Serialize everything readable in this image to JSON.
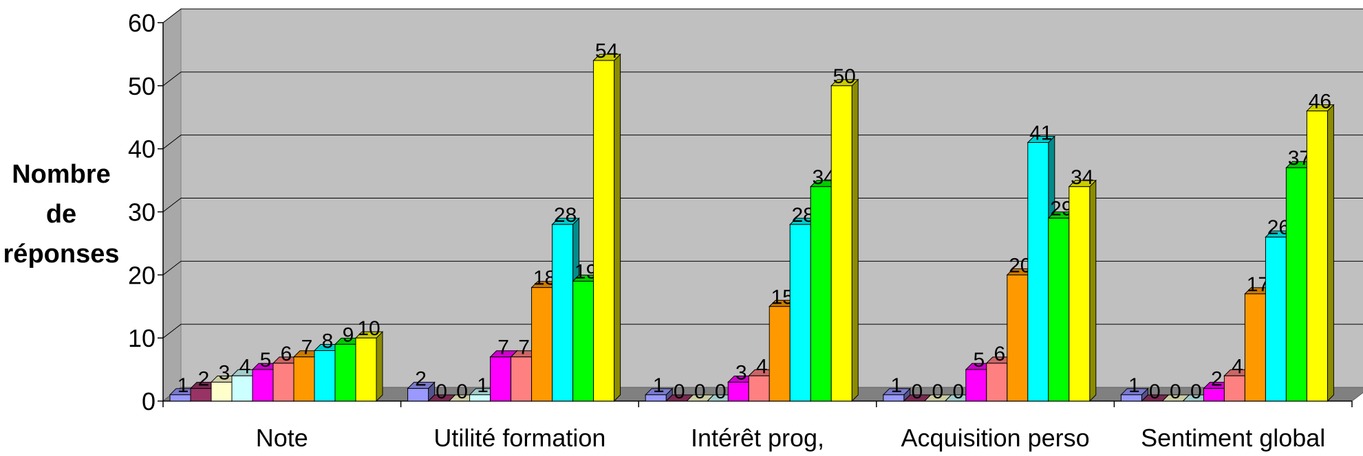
{
  "chart_data": {
    "type": "bar",
    "ylabel_lines": [
      "Nombre",
      "de",
      "réponses"
    ],
    "xlabel": "",
    "categories": [
      "Note",
      "Utilité formation",
      "Intérêt prog,",
      "Acquisition perso",
      "Sentiment global"
    ],
    "ylim": [
      0,
      60
    ],
    "yticks": [
      0,
      10,
      20,
      30,
      40,
      50,
      60
    ],
    "grid": true,
    "legend": "none",
    "series": [
      {
        "color": "#9999ff",
        "values": [
          1,
          2,
          1,
          1,
          1
        ]
      },
      {
        "color": "#993366",
        "values": [
          2,
          0,
          0,
          0,
          0
        ]
      },
      {
        "color": "#ffffcc",
        "values": [
          3,
          0,
          0,
          0,
          0
        ]
      },
      {
        "color": "#ccffff",
        "values": [
          4,
          1,
          0,
          0,
          0
        ]
      },
      {
        "color": "#ff00ff",
        "values": [
          5,
          7,
          3,
          5,
          2
        ]
      },
      {
        "color": "#ff8080",
        "values": [
          6,
          7,
          4,
          6,
          4
        ]
      },
      {
        "color": "#ff9900",
        "values": [
          7,
          18,
          15,
          20,
          17
        ]
      },
      {
        "color": "#00ffff",
        "values": [
          8,
          28,
          28,
          41,
          26
        ]
      },
      {
        "color": "#00ff00",
        "values": [
          9,
          19,
          34,
          29,
          37
        ]
      },
      {
        "color": "#ffff00",
        "values": [
          10,
          54,
          50,
          34,
          46
        ]
      }
    ]
  }
}
